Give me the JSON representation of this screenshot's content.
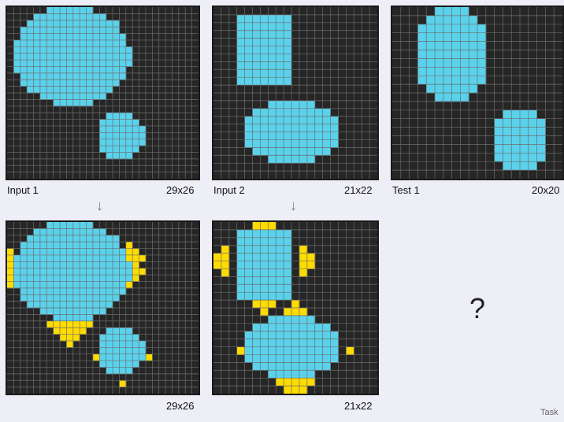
{
  "colors": {
    "bg": "#262626",
    "grid": "#6d6d6d",
    "cyan": "#5ad2ec",
    "yellow": "#ffdc00"
  },
  "examples": [
    {
      "label": "Input 1",
      "size": "29x26"
    },
    {
      "label": "Input 2",
      "size": "21x22"
    }
  ],
  "test": {
    "label": "Test 1",
    "size": "20x20"
  },
  "outputs": [
    {
      "size": "29x26"
    },
    {
      "size": "21x22"
    }
  ],
  "question_mark": "?",
  "footer": "Task"
}
